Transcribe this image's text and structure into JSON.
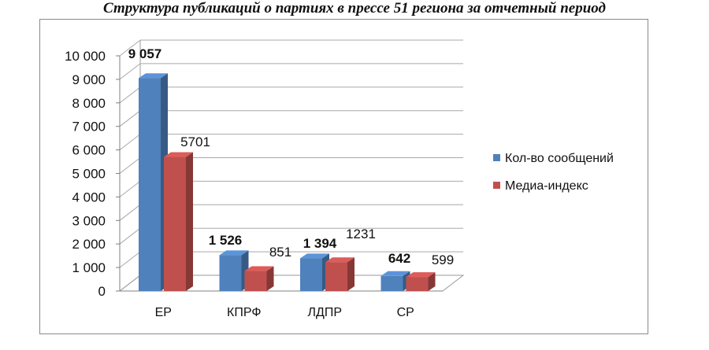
{
  "title": "Структура публикаций о партиях в прессе 51 региона за отчетный период",
  "chart_data": {
    "type": "bar",
    "style": "3d-clustered",
    "categories": [
      "ЕР",
      "КПРФ",
      "ЛДПР",
      "СР"
    ],
    "series": [
      {
        "name": "Кол-во сообщений",
        "values": [
          9057,
          1526,
          1394,
          642
        ],
        "labels": [
          "9 057",
          "1 526",
          "1 394",
          "642"
        ],
        "color": "#4f81bd",
        "label_bold": true
      },
      {
        "name": "Медиа-индекс",
        "values": [
          5701,
          851,
          1231,
          599
        ],
        "labels": [
          "5701",
          "851",
          "1231",
          "599"
        ],
        "color": "#c0504d",
        "label_bold": false
      }
    ],
    "yticks": [
      "0",
      "1 000",
      "2 000",
      "3 000",
      "4 000",
      "5 000",
      "6 000",
      "7 000",
      "8 000",
      "9 000",
      "10 000"
    ],
    "ylim": [
      0,
      10000
    ],
    "grid": true,
    "legend_position": "right"
  }
}
